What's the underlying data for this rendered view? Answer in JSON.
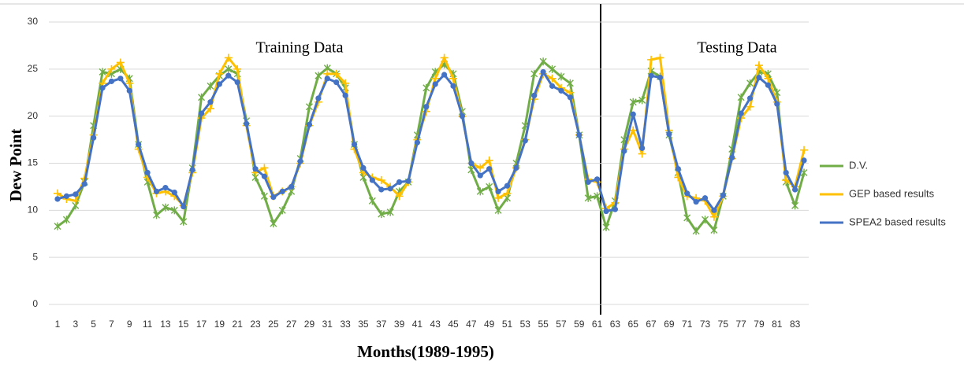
{
  "chart_data": {
    "type": "line",
    "xlabel": "Months(1989-1995)",
    "ylabel": "Dew Point",
    "annotations": [
      "Training Data",
      "Testing Data"
    ],
    "categories": [
      1,
      null,
      3,
      null,
      5,
      null,
      7,
      null,
      9,
      null,
      11,
      null,
      13,
      null,
      15,
      null,
      17,
      null,
      19,
      null,
      21,
      null,
      23,
      null,
      25,
      null,
      27,
      null,
      29,
      null,
      31,
      null,
      33,
      null,
      35,
      null,
      37,
      null,
      39,
      null,
      41,
      null,
      43,
      null,
      45,
      null,
      47,
      null,
      49,
      null,
      51,
      null,
      53,
      null,
      55,
      null,
      57,
      null,
      59,
      null,
      61,
      null,
      63,
      null,
      65,
      null,
      67,
      null,
      69,
      null,
      71,
      null,
      73,
      null,
      75,
      null,
      77,
      null,
      79,
      null,
      81,
      null,
      83,
      null
    ],
    "series": [
      {
        "name": "D.V.",
        "color": "#70ad47",
        "marker": "star",
        "values": [
          8.3,
          9,
          10.5,
          13,
          19,
          24.7,
          24.5,
          25,
          24,
          17,
          13,
          9.5,
          10.3,
          10,
          8.8,
          14.5,
          22,
          23.2,
          24.3,
          25,
          24.5,
          19.5,
          13.5,
          11.5,
          8.6,
          10,
          12,
          15.5,
          21,
          24.3,
          25.1,
          24.5,
          23,
          17,
          13.5,
          11,
          9.6,
          9.8,
          12,
          13,
          18,
          23,
          24.7,
          25.5,
          24.5,
          20.5,
          14.3,
          12,
          12.5,
          10,
          11.3,
          15,
          19,
          24.5,
          25.8,
          25,
          24.2,
          23.5,
          18,
          11.3,
          11.5,
          8.2,
          11,
          17.5,
          21.5,
          21.7,
          24.8,
          24.2,
          18,
          14,
          9.2,
          7.8,
          9,
          7.9,
          11.5,
          16.5,
          22,
          23.5,
          24.7,
          24.5,
          22.5,
          13,
          10.5,
          14
        ]
      },
      {
        "name": "GEP based results",
        "color": "#ffc000",
        "marker": "plus",
        "values": [
          11.8,
          11.2,
          11,
          13.4,
          18,
          23.5,
          25,
          25.7,
          23.5,
          16.5,
          13.5,
          11.8,
          12,
          11.5,
          10.5,
          14,
          19.8,
          20.8,
          24.5,
          26.2,
          25,
          19,
          14,
          14.5,
          11.5,
          12,
          12.5,
          15,
          19,
          21.5,
          24.5,
          24.5,
          23.5,
          16.5,
          14,
          13.5,
          13.2,
          12.5,
          11.5,
          13,
          17.5,
          20.5,
          24,
          26.2,
          24,
          20,
          15,
          14.5,
          15.3,
          11.3,
          11.8,
          14.5,
          17.5,
          21.8,
          24.5,
          24,
          23,
          22.5,
          18,
          13.3,
          13,
          10.2,
          10.8,
          16.5,
          18.5,
          16,
          26,
          26.2,
          18.5,
          13.5,
          11.5,
          11.3,
          11,
          9.3,
          11.5,
          15.5,
          19.8,
          21,
          25.4,
          24,
          21.5,
          13.2,
          12.5,
          16.4
        ]
      },
      {
        "name": "SPEA2 based results",
        "color": "#4472c4",
        "marker": "circle",
        "values": [
          11.2,
          11.5,
          11.7,
          12.8,
          17.7,
          23,
          23.7,
          24,
          22.7,
          17,
          14,
          12,
          12.4,
          11.9,
          10.4,
          14.3,
          20.3,
          21.5,
          23.4,
          24.3,
          23.6,
          19.2,
          14.4,
          13.6,
          11.4,
          12,
          12.5,
          15.2,
          19.1,
          21.9,
          24,
          23.6,
          22.2,
          17,
          14.5,
          13.2,
          12.2,
          12.3,
          13,
          13.1,
          17.2,
          21,
          23.4,
          24.4,
          23.2,
          20,
          15,
          13.7,
          14.4,
          12,
          12.6,
          14.5,
          17.4,
          22.2,
          24.7,
          23.2,
          22.7,
          22,
          18,
          13,
          13.3,
          9.9,
          10.1,
          16.3,
          20.2,
          16.6,
          24.3,
          24.1,
          18.1,
          14.4,
          11.8,
          10.9,
          11.3,
          10,
          11.6,
          15.6,
          20.3,
          21.9,
          24.1,
          23.3,
          21.3,
          14,
          12.2,
          15.3
        ]
      }
    ],
    "ylim": [
      0,
      30
    ],
    "yticks": [
      0,
      5,
      10,
      15,
      20,
      25,
      30
    ],
    "grid": true,
    "legend": "right"
  }
}
